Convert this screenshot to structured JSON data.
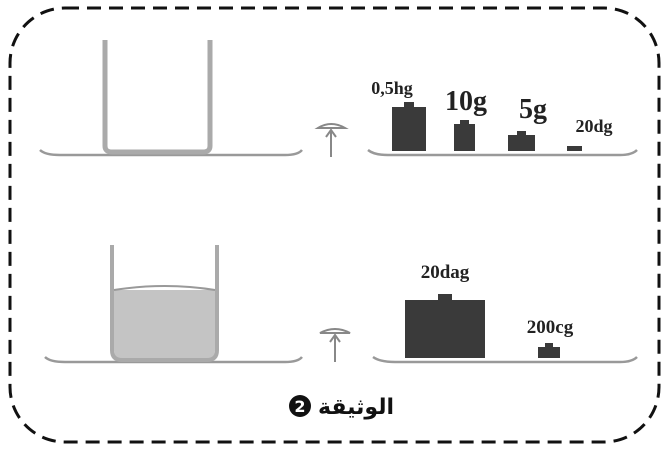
{
  "document": {
    "top_weights": [
      "0,5hg",
      "10g",
      "5g",
      "20dg"
    ],
    "bottom_weights": [
      "20dag",
      "200cg"
    ],
    "caption": "الوثيقة",
    "caption_number": "2"
  }
}
